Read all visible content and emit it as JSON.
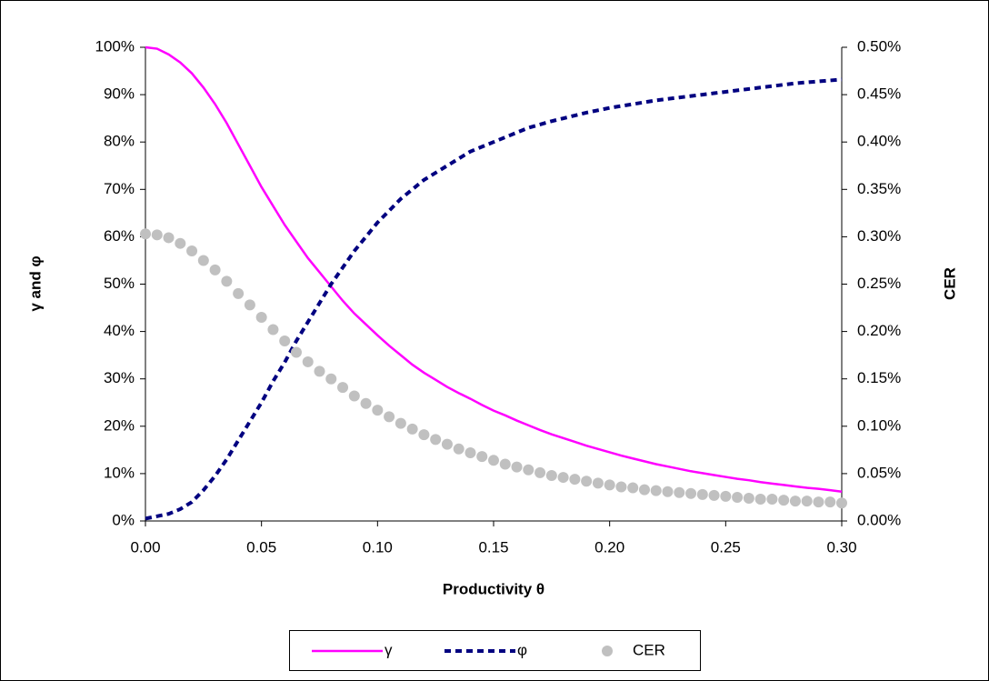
{
  "chart_data": {
    "type": "line",
    "x_label": "Productivity θ",
    "y_label": "γ and φ",
    "y2_label": "CER",
    "x": [
      0,
      0.005,
      0.01,
      0.015,
      0.02,
      0.025,
      0.03,
      0.035,
      0.04,
      0.045,
      0.05,
      0.055,
      0.06,
      0.065,
      0.07,
      0.075,
      0.08,
      0.085,
      0.09,
      0.095,
      0.1,
      0.105,
      0.11,
      0.115,
      0.12,
      0.125,
      0.13,
      0.135,
      0.14,
      0.145,
      0.15,
      0.155,
      0.16,
      0.165,
      0.17,
      0.175,
      0.18,
      0.185,
      0.19,
      0.195,
      0.2,
      0.205,
      0.21,
      0.215,
      0.22,
      0.225,
      0.23,
      0.235,
      0.24,
      0.245,
      0.25,
      0.255,
      0.26,
      0.265,
      0.27,
      0.275,
      0.28,
      0.285,
      0.29,
      0.295,
      0.3
    ],
    "series": [
      {
        "name": "γ",
        "color": "#ff00ff",
        "line": "solid",
        "values": [
          100,
          99.7,
          98.5,
          96.8,
          94.5,
          91.5,
          88,
          84,
          79.5,
          75,
          70.5,
          66.5,
          62.5,
          59,
          55.5,
          52.5,
          49.5,
          46.5,
          43.8,
          41.5,
          39.2,
          37,
          35,
          33,
          31.3,
          29.8,
          28.3,
          27,
          25.8,
          24.5,
          23.3,
          22.3,
          21.2,
          20.2,
          19.2,
          18.3,
          17.5,
          16.7,
          15.9,
          15.2,
          14.5,
          13.8,
          13.2,
          12.6,
          12,
          11.5,
          11,
          10.5,
          10.1,
          9.7,
          9.3,
          8.9,
          8.6,
          8.2,
          7.9,
          7.6,
          7.3,
          7,
          6.8,
          6.5,
          6.2
        ]
      },
      {
        "name": "φ",
        "color": "#000080",
        "line": "dashed",
        "values": [
          0.5,
          1,
          1.5,
          2.5,
          4,
          6.5,
          9.5,
          13,
          17,
          21,
          25,
          29.5,
          33.5,
          38,
          42,
          46,
          50,
          53.5,
          57,
          60,
          63,
          65.5,
          68,
          70,
          72,
          73.5,
          75,
          76.5,
          78,
          79,
          80,
          81,
          82,
          83,
          83.7,
          84.4,
          85,
          85.6,
          86.2,
          86.7,
          87.2,
          87.6,
          88,
          88.4,
          88.8,
          89.1,
          89.4,
          89.7,
          90,
          90.3,
          90.6,
          90.9,
          91.2,
          91.5,
          91.8,
          92.1,
          92.4,
          92.6,
          92.8,
          93,
          93.2
        ]
      },
      {
        "name": "CER",
        "color": "#c0c0c0",
        "line": "none",
        "marker": "circle",
        "axis": "y2",
        "values": [
          0.303,
          0.302,
          0.299,
          0.293,
          0.285,
          0.275,
          0.265,
          0.253,
          0.24,
          0.228,
          0.215,
          0.202,
          0.19,
          0.178,
          0.168,
          0.158,
          0.15,
          0.141,
          0.132,
          0.124,
          0.117,
          0.11,
          0.103,
          0.097,
          0.091,
          0.086,
          0.081,
          0.076,
          0.072,
          0.068,
          0.064,
          0.06,
          0.057,
          0.054,
          0.051,
          0.048,
          0.046,
          0.044,
          0.042,
          0.04,
          0.038,
          0.036,
          0.035,
          0.033,
          0.032,
          0.031,
          0.03,
          0.029,
          0.028,
          0.027,
          0.026,
          0.025,
          0.024,
          0.023,
          0.023,
          0.022,
          0.021,
          0.021,
          0.02,
          0.02,
          0.019
        ]
      }
    ],
    "xlim": [
      0,
      0.3
    ],
    "xticks": [
      {
        "value": 0,
        "label": "0.00"
      },
      {
        "value": 0.05,
        "label": "0.05"
      },
      {
        "value": 0.1,
        "label": "0.10"
      },
      {
        "value": 0.15,
        "label": "0.15"
      },
      {
        "value": 0.2,
        "label": "0.20"
      },
      {
        "value": 0.25,
        "label": "0.25"
      },
      {
        "value": 0.3,
        "label": "0.30"
      }
    ],
    "ylim": [
      0,
      100
    ],
    "yticks": [
      {
        "value": 0,
        "label": "0%"
      },
      {
        "value": 10,
        "label": "10%"
      },
      {
        "value": 20,
        "label": "20%"
      },
      {
        "value": 30,
        "label": "30%"
      },
      {
        "value": 40,
        "label": "40%"
      },
      {
        "value": 50,
        "label": "50%"
      },
      {
        "value": 60,
        "label": "60%"
      },
      {
        "value": 70,
        "label": "70%"
      },
      {
        "value": 80,
        "label": "80%"
      },
      {
        "value": 90,
        "label": "90%"
      },
      {
        "value": 100,
        "label": "100%"
      }
    ],
    "y2lim": [
      0,
      0.5
    ],
    "y2ticks": [
      {
        "value": 0,
        "label": "0.00%"
      },
      {
        "value": 0.05,
        "label": "0.05%"
      },
      {
        "value": 0.1,
        "label": "0.10%"
      },
      {
        "value": 0.15,
        "label": "0.15%"
      },
      {
        "value": 0.2,
        "label": "0.20%"
      },
      {
        "value": 0.25,
        "label": "0.25%"
      },
      {
        "value": 0.3,
        "label": "0.30%"
      },
      {
        "value": 0.35,
        "label": "0.35%"
      },
      {
        "value": 0.4,
        "label": "0.40%"
      },
      {
        "value": 0.45,
        "label": "0.45%"
      },
      {
        "value": 0.5,
        "label": "0.50%"
      }
    ],
    "grid": false,
    "legend": "bottom"
  }
}
